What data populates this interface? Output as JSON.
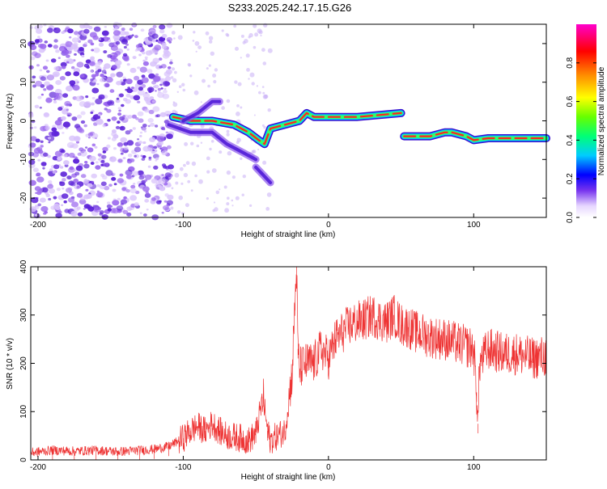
{
  "title": "S233.2025.242.17.15.G26",
  "chart_data": [
    {
      "type": "heatmap",
      "xlabel": "Height of straight line (km)",
      "ylabel": "Frequency (Hz)",
      "xlim": [
        -205,
        150
      ],
      "ylim": [
        -25,
        25
      ],
      "xticks": [
        -200,
        -100,
        0,
        100
      ],
      "xtick_labels": [
        "-200",
        "-100",
        "0",
        "100"
      ],
      "yticks": [
        -20,
        -10,
        0,
        10,
        20
      ],
      "ytick_labels": [
        "-20",
        "-10",
        "0",
        "10",
        "20"
      ],
      "colorbar": {
        "label": "Normalized spectral amplitude",
        "range": [
          0,
          1
        ],
        "ticks": [
          0.0,
          0.2,
          0.4,
          0.6,
          0.8
        ],
        "tick_labels": [
          "0.0",
          "0.2",
          "0.4",
          "0.6",
          "0.8"
        ]
      },
      "ridge_segments": [
        {
          "name": "main-ridge-1",
          "x": [
            -107,
            -95,
            -80,
            -65,
            -55,
            -48,
            -44,
            -40,
            -30,
            -20,
            -15,
            -10,
            0,
            20,
            50
          ],
          "y": [
            1,
            0,
            0,
            -1,
            -3,
            -5,
            -6,
            -2,
            -1,
            0,
            2,
            1,
            1,
            1,
            2
          ],
          "amp": 0.9
        },
        {
          "name": "main-ridge-2",
          "x": [
            52,
            60,
            70,
            80,
            85,
            90,
            95,
            100,
            110,
            120,
            150
          ],
          "y": [
            -4,
            -4,
            -4,
            -3,
            -3,
            -3.5,
            -4,
            -5,
            -4.5,
            -4.5,
            -4.5
          ],
          "amp": 0.9
        },
        {
          "name": "side-branch",
          "x": [
            -110,
            -95,
            -80,
            -70,
            -60,
            -50
          ],
          "y": [
            -1,
            -3,
            -3,
            -6,
            -8,
            -10
          ],
          "amp": 0.35
        },
        {
          "name": "low-branch",
          "x": [
            -50,
            -45,
            -40
          ],
          "y": [
            -12,
            -14,
            -16
          ],
          "amp": 0.3
        },
        {
          "name": "upper-hook",
          "x": [
            -100,
            -90,
            -80,
            -75
          ],
          "y": [
            0,
            2,
            5,
            5
          ],
          "amp": 0.35
        }
      ],
      "noise_region_x": [
        -205,
        -108
      ],
      "noise_y_range": [
        -25,
        25
      ]
    },
    {
      "type": "line",
      "xlabel": "Height of straight line (km)",
      "ylabel": "SNR (10 * v/v)",
      "xlim": [
        -205,
        150
      ],
      "ylim": [
        0,
        400
      ],
      "xticks": [
        -200,
        -100,
        0,
        100
      ],
      "xtick_labels": [
        "-200",
        "-100",
        "0",
        "100"
      ],
      "yticks": [
        0,
        100,
        200,
        300,
        400
      ],
      "ytick_labels": [
        "0",
        "100",
        "200",
        "300",
        "400"
      ],
      "color": "#ee3333",
      "series": [
        {
          "name": "SNR",
          "x": [
            -205,
            -190,
            -175,
            -160,
            -145,
            -130,
            -120,
            -110,
            -100,
            -95,
            -90,
            -85,
            -80,
            -75,
            -70,
            -65,
            -60,
            -55,
            -50,
            -45,
            -42,
            -40,
            -38,
            -35,
            -30,
            -25,
            -23,
            -22,
            -21,
            -20,
            -15,
            -10,
            -5,
            0,
            5,
            10,
            15,
            20,
            25,
            30,
            35,
            40,
            45,
            50,
            55,
            60,
            70,
            80,
            90,
            100,
            102,
            103,
            104,
            110,
            120,
            130,
            140,
            150
          ],
          "y": [
            15,
            20,
            18,
            20,
            17,
            20,
            22,
            28,
            45,
            60,
            70,
            60,
            75,
            60,
            50,
            48,
            45,
            40,
            55,
            130,
            60,
            40,
            45,
            50,
            60,
            180,
            330,
            400,
            230,
            190,
            200,
            200,
            230,
            210,
            250,
            265,
            280,
            285,
            290,
            300,
            290,
            285,
            300,
            280,
            275,
            265,
            255,
            250,
            240,
            230,
            140,
            75,
            200,
            230,
            220,
            220,
            210,
            215
          ]
        }
      ]
    }
  ]
}
